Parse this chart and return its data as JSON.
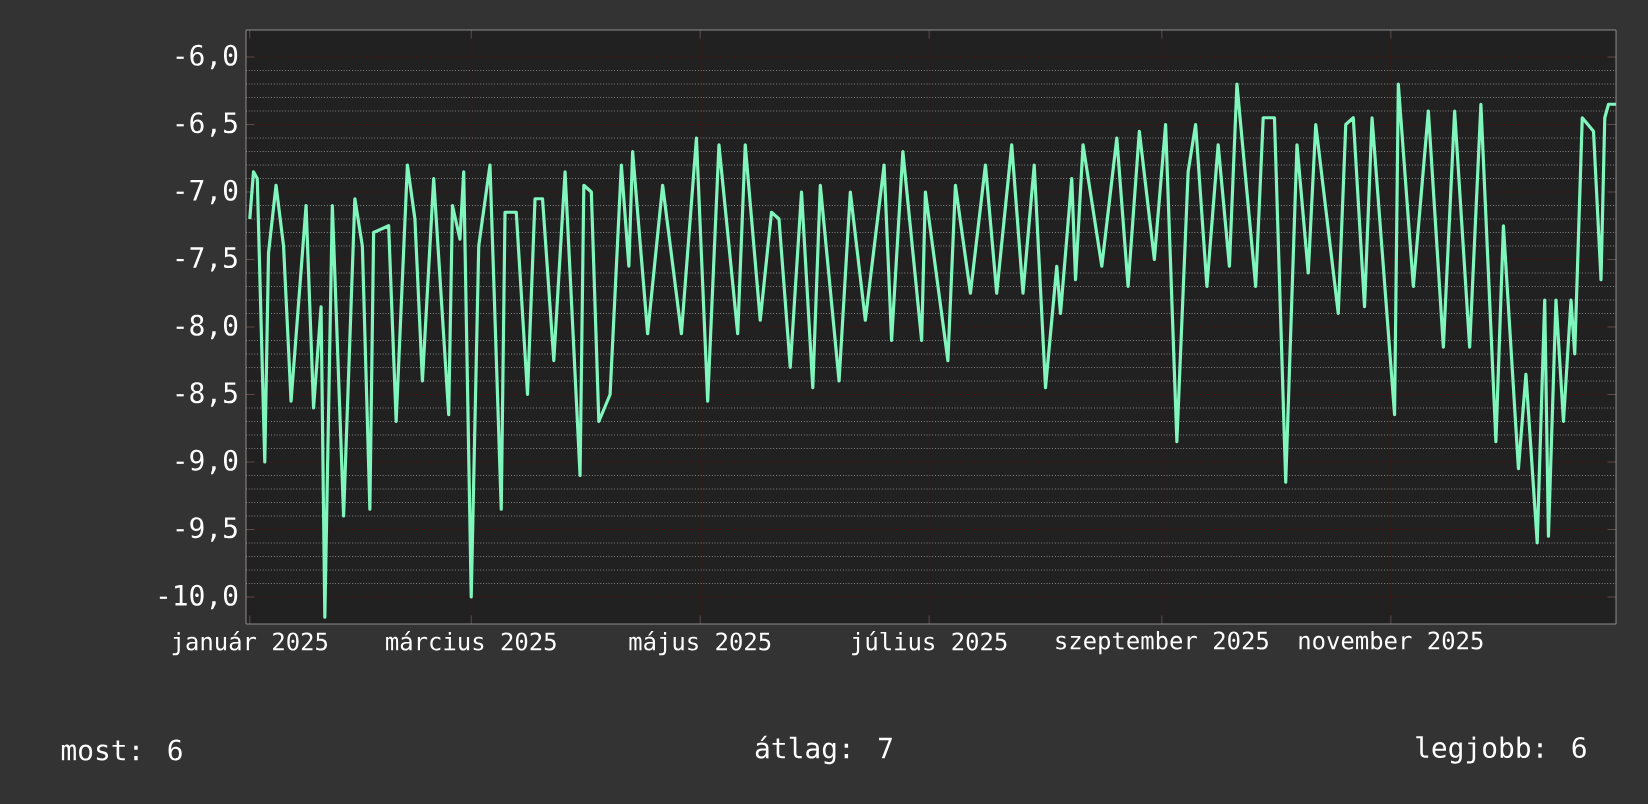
{
  "chart_data": {
    "type": "line",
    "x": [
      "2025-01-01",
      "2025-01-02",
      "2025-01-03",
      "2025-01-05",
      "2025-01-06",
      "2025-01-08",
      "2025-01-10",
      "2025-01-12",
      "2025-01-16",
      "2025-01-18",
      "2025-01-20",
      "2025-01-21",
      "2025-01-23",
      "2025-01-26",
      "2025-01-29",
      "2025-01-31",
      "2025-02-02",
      "2025-02-03",
      "2025-02-07",
      "2025-02-09",
      "2025-02-12",
      "2025-02-14",
      "2025-02-16",
      "2025-02-19",
      "2025-02-23",
      "2025-02-24",
      "2025-02-26",
      "2025-02-27",
      "2025-03-01",
      "2025-03-03",
      "2025-03-06",
      "2025-03-09",
      "2025-03-10",
      "2025-03-13",
      "2025-03-16",
      "2025-03-18",
      "2025-03-20",
      "2025-03-23",
      "2025-03-26",
      "2025-03-30",
      "2025-03-31",
      "2025-04-02",
      "2025-04-04",
      "2025-04-07",
      "2025-04-10",
      "2025-04-12",
      "2025-04-13",
      "2025-04-17",
      "2025-04-21",
      "2025-04-26",
      "2025-04-30",
      "2025-05-03",
      "2025-05-06",
      "2025-05-11",
      "2025-05-13",
      "2025-05-17",
      "2025-05-20",
      "2025-05-22",
      "2025-05-25",
      "2025-05-28",
      "2025-05-31",
      "2025-06-02",
      "2025-06-07",
      "2025-06-10",
      "2025-06-14",
      "2025-06-19",
      "2025-06-21",
      "2025-06-24",
      "2025-06-29",
      "2025-06-30",
      "2025-07-06",
      "2025-07-08",
      "2025-07-12",
      "2025-07-16",
      "2025-07-19",
      "2025-07-23",
      "2025-07-26",
      "2025-07-29",
      "2025-08-01",
      "2025-08-04",
      "2025-08-05",
      "2025-08-08",
      "2025-08-09",
      "2025-08-11",
      "2025-08-16",
      "2025-08-20",
      "2025-08-23",
      "2025-08-26",
      "2025-08-30",
      "2025-09-02",
      "2025-09-05",
      "2025-09-08",
      "2025-09-10",
      "2025-09-13",
      "2025-09-16",
      "2025-09-19",
      "2025-09-21",
      "2025-09-26",
      "2025-09-28",
      "2025-10-01",
      "2025-10-04",
      "2025-10-07",
      "2025-10-10",
      "2025-10-12",
      "2025-10-18",
      "2025-10-20",
      "2025-10-22",
      "2025-10-25",
      "2025-10-27",
      "2025-11-02",
      "2025-11-03",
      "2025-11-07",
      "2025-11-11",
      "2025-11-15",
      "2025-11-18",
      "2025-11-22",
      "2025-11-25",
      "2025-11-29",
      "2025-12-01",
      "2025-12-05",
      "2025-12-07",
      "2025-12-10",
      "2025-12-12",
      "2025-12-13",
      "2025-12-15",
      "2025-12-17",
      "2025-12-19",
      "2025-12-20",
      "2025-12-22",
      "2025-12-25",
      "2025-12-27",
      "2025-12-28",
      "2025-12-29",
      "2025-12-31"
    ],
    "series": [
      {
        "color": "#80f5bc",
        "values": [
          -7.2,
          -6.85,
          -6.9,
          -9.0,
          -7.45,
          -6.95,
          -7.4,
          -8.55,
          -7.1,
          -8.6,
          -7.85,
          -10.15,
          -7.1,
          -9.4,
          -7.05,
          -7.4,
          -9.35,
          -7.3,
          -7.25,
          -8.7,
          -6.8,
          -7.2,
          -8.4,
          -6.9,
          -8.65,
          -7.1,
          -7.35,
          -6.85,
          -10.0,
          -7.4,
          -6.8,
          -9.35,
          -7.15,
          -7.15,
          -8.5,
          -7.05,
          -7.05,
          -8.25,
          -6.85,
          -9.1,
          -6.95,
          -7.0,
          -8.7,
          -8.5,
          -6.8,
          -7.55,
          -6.7,
          -8.05,
          -6.95,
          -8.05,
          -6.6,
          -8.55,
          -6.65,
          -8.05,
          -6.65,
          -7.95,
          -7.15,
          -7.2,
          -8.3,
          -7.0,
          -8.45,
          -6.95,
          -8.4,
          -7.0,
          -7.95,
          -6.8,
          -8.1,
          -6.7,
          -8.1,
          -7.0,
          -8.25,
          -6.95,
          -7.75,
          -6.8,
          -7.75,
          -6.65,
          -7.75,
          -6.8,
          -8.45,
          -7.55,
          -7.9,
          -6.9,
          -7.65,
          -6.65,
          -7.55,
          -6.6,
          -7.7,
          -6.55,
          -7.5,
          -6.5,
          -8.85,
          -6.85,
          -6.5,
          -7.7,
          -6.65,
          -7.55,
          -6.2,
          -7.7,
          -6.45,
          -6.45,
          -9.15,
          -6.65,
          -7.6,
          -6.5,
          -7.9,
          -6.5,
          -6.45,
          -7.85,
          -6.45,
          -8.65,
          -6.2,
          -7.7,
          -6.4,
          -8.15,
          -6.4,
          -8.15,
          -6.35,
          -8.85,
          -7.25,
          -9.05,
          -8.35,
          -9.6,
          -7.8,
          -9.55,
          -7.8,
          -8.7,
          -7.8,
          -8.2,
          -6.45,
          -6.55,
          -7.65,
          -6.45,
          -6.35,
          -6.35
        ]
      }
    ],
    "xlim": [
      "2024-12-31",
      "2025-12-31"
    ],
    "xticks": [
      {
        "value": "2025-01-01",
        "label": "január 2025"
      },
      {
        "value": "2025-03-01",
        "label": "március 2025"
      },
      {
        "value": "2025-05-01",
        "label": "május 2025"
      },
      {
        "value": "2025-07-01",
        "label": "július 2025"
      },
      {
        "value": "2025-09-01",
        "label": "szeptember 2025"
      },
      {
        "value": "2025-11-01",
        "label": "november 2025"
      }
    ],
    "ylim": [
      -10.2,
      -5.8
    ],
    "yticks": [
      {
        "value": -10.0,
        "label": "-10,0"
      },
      {
        "value": -9.5,
        "label": "-9,5"
      },
      {
        "value": -9.0,
        "label": "-9,0"
      },
      {
        "value": -8.5,
        "label": "-8,5"
      },
      {
        "value": -8.0,
        "label": "-8,0"
      },
      {
        "value": -7.5,
        "label": "-7,5"
      },
      {
        "value": -7.0,
        "label": "-7,0"
      },
      {
        "value": -6.5,
        "label": "-6,5"
      },
      {
        "value": -6.0,
        "label": "-6,0"
      }
    ],
    "grid": true,
    "annotations": [
      "most: 6",
      "átlag: 7",
      "legjobb: 6"
    ]
  }
}
